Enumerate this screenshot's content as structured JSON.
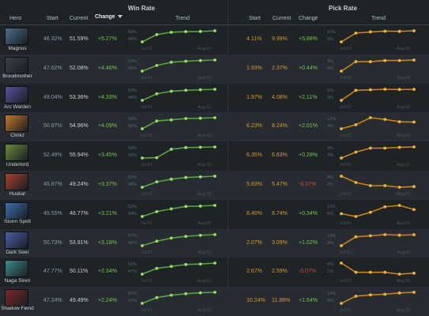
{
  "sections": {
    "win_rate": "Win Rate",
    "pick_rate": "Pick Rate"
  },
  "columns": {
    "hero": "Hero",
    "start": "Start",
    "current": "Current",
    "change": "Change",
    "trend": "Trend"
  },
  "axis": {
    "x_start": "Jul 01",
    "x_end": "Aug 01"
  },
  "colors": {
    "win_line": "#5ca23d",
    "win_dot": "#9bdc6a",
    "pick_line": "#c9860f",
    "pick_dot": "#f0b43c",
    "positive": "#7cc24a",
    "negative": "#d04a3a",
    "pick_value": "#d99b28"
  },
  "rows": [
    {
      "hero": "Magnus",
      "portrait_color": "#4a6f8c",
      "win_start": "46.32%",
      "win_current": "51.59%",
      "win_change": "+5.27%",
      "win_change_sign": "pos",
      "win_ticks": [
        "56%",
        "48%"
      ],
      "win_values": [
        46.3,
        49.8,
        50.9,
        51.2,
        51.3,
        51.6
      ],
      "pick_start": "4.11%",
      "pick_current": "9.99%",
      "pick_change": "+5.88%",
      "pick_change_sign": "pos",
      "pick_ticks": [
        "15%",
        "5%"
      ],
      "pick_values": [
        4.1,
        8.8,
        9.4,
        9.8,
        9.7,
        10.0
      ]
    },
    {
      "hero": "Broodmother",
      "portrait_color": "#3e3d4a",
      "win_start": "47.62%",
      "win_current": "52.08%",
      "win_change": "+4.46%",
      "win_change_sign": "pos",
      "win_ticks": [
        "53%",
        "45%"
      ],
      "win_values": [
        47.6,
        49.9,
        51.2,
        51.6,
        51.9,
        52.1
      ],
      "pick_start": "1.93%",
      "pick_current": "2.37%",
      "pick_change": "+0.44%",
      "pick_change_sign": "pos",
      "pick_ticks": [
        "3%",
        "0%"
      ],
      "pick_values": [
        1.9,
        2.3,
        2.3,
        2.35,
        2.35,
        2.37
      ]
    },
    {
      "hero": "Arc Warden",
      "portrait_color": "#5a4fa0",
      "win_start": "49.04%",
      "win_current": "53.36%",
      "win_change": "+4.33%",
      "win_change_sign": "pos",
      "win_ticks": [
        "56%",
        "48%"
      ],
      "win_values": [
        49.0,
        51.6,
        52.6,
        53.0,
        53.2,
        53.4
      ],
      "pick_start": "1.97%",
      "pick_current": "4.08%",
      "pick_change": "+2.11%",
      "pick_change_sign": "pos",
      "pick_ticks": [
        "5%",
        "0%"
      ],
      "pick_values": [
        2.0,
        3.9,
        4.0,
        4.1,
        4.05,
        4.08
      ]
    },
    {
      "hero": "Clinkz",
      "portrait_color": "#c7762c",
      "win_start": "50.87%",
      "win_current": "54.96%",
      "win_change": "+4.09%",
      "win_change_sign": "pos",
      "win_ticks": [
        "58%",
        "50%"
      ],
      "win_values": [
        50.9,
        53.8,
        54.2,
        54.7,
        54.8,
        55.0
      ],
      "pick_start": "6.23%",
      "pick_current": "8.24%",
      "pick_change": "+2.01%",
      "pick_change_sign": "pos",
      "pick_ticks": [
        "12%",
        "4%"
      ],
      "pick_values": [
        6.2,
        7.4,
        9.5,
        9.0,
        8.3,
        8.2
      ]
    },
    {
      "hero": "Underlord",
      "portrait_color": "#6e8a3c",
      "win_start": "52.49%",
      "win_current": "55.94%",
      "win_change": "+3.45%",
      "win_change_sign": "pos",
      "win_ticks": [
        "58%",
        "50%"
      ],
      "win_values": [
        52.5,
        52.6,
        55.2,
        55.7,
        55.8,
        55.9
      ],
      "pick_start": "6.35%",
      "pick_current": "6.63%",
      "pick_change": "+0.28%",
      "pick_change_sign": "pos",
      "pick_ticks": [
        "9%",
        "3%"
      ],
      "pick_values": [
        6.35,
        6.5,
        6.6,
        6.6,
        6.62,
        6.63
      ]
    },
    {
      "hero": "Huskar",
      "portrait_color": "#a8402c",
      "win_start": "45.87%",
      "win_current": "49.24%",
      "win_change": "+3.37%",
      "win_change_sign": "pos",
      "win_ticks": [
        "52%",
        "44%"
      ],
      "win_values": [
        45.9,
        47.5,
        48.3,
        48.8,
        49.0,
        49.2
      ],
      "pick_start": "5.83%",
      "pick_current": "5.47%",
      "pick_change": "-0.37%",
      "pick_change_sign": "neg",
      "pick_ticks": [
        "8%",
        "2%"
      ],
      "pick_values": [
        5.8,
        5.6,
        5.5,
        5.5,
        5.45,
        5.47
      ]
    },
    {
      "hero": "Storm Spirit",
      "portrait_color": "#3b6fb0",
      "win_start": "45.55%",
      "win_current": "48.77%",
      "win_change": "+3.21%",
      "win_change_sign": "pos",
      "win_ticks": [
        "52%",
        "44%"
      ],
      "win_values": [
        45.6,
        47.0,
        47.8,
        48.5,
        48.6,
        48.8
      ],
      "pick_start": "8.40%",
      "pick_current": "8.74%",
      "pick_change": "+0.34%",
      "pick_change_sign": "pos",
      "pick_ticks": [
        "11%",
        "5%"
      ],
      "pick_values": [
        8.4,
        8.2,
        8.5,
        8.9,
        9.0,
        8.7
      ]
    },
    {
      "hero": "Dark Seer",
      "portrait_color": "#4d5ea8",
      "win_start": "50.73%",
      "win_current": "53.91%",
      "win_change": "+3.18%",
      "win_change_sign": "pos",
      "win_ticks": [
        "57%",
        "49%"
      ],
      "win_values": [
        50.7,
        52.0,
        52.9,
        53.4,
        53.7,
        53.9
      ],
      "pick_start": "2.07%",
      "pick_current": "3.09%",
      "pick_change": "+1.02%",
      "pick_change_sign": "pos",
      "pick_ticks": [
        "10%",
        "0%"
      ],
      "pick_values": [
        2.1,
        2.9,
        3.0,
        3.1,
        3.05,
        3.09
      ]
    },
    {
      "hero": "Naga Siren",
      "portrait_color": "#3e8a8a",
      "win_start": "47.77%",
      "win_current": "50.11%",
      "win_change": "+2.34%",
      "win_change_sign": "pos",
      "win_ticks": [
        "51%",
        "47%"
      ],
      "win_values": [
        47.8,
        49.0,
        49.4,
        49.8,
        49.9,
        50.1
      ],
      "pick_start": "2.67%",
      "pick_current": "2.59%",
      "pick_change": "-0.07%",
      "pick_change_sign": "neg",
      "pick_ticks": [
        "5%",
        "1%"
      ],
      "pick_values": [
        2.7,
        2.6,
        2.6,
        2.6,
        2.58,
        2.59
      ]
    },
    {
      "hero": "Shadow Fiend",
      "portrait_color": "#7a2a26",
      "win_start": "47.24%",
      "win_current": "49.49%",
      "win_change": "+2.24%",
      "win_change_sign": "pos",
      "win_ticks": [
        "51%",
        "47%"
      ],
      "win_values": [
        47.2,
        48.4,
        48.9,
        49.2,
        49.4,
        49.5
      ],
      "pick_start": "10.24%",
      "pick_current": "11.88%",
      "pick_change": "+1.64%",
      "pick_change_sign": "pos",
      "pick_ticks": [
        "14%",
        "8%"
      ],
      "pick_values": [
        10.2,
        11.3,
        11.5,
        11.6,
        11.8,
        11.9
      ]
    }
  ]
}
